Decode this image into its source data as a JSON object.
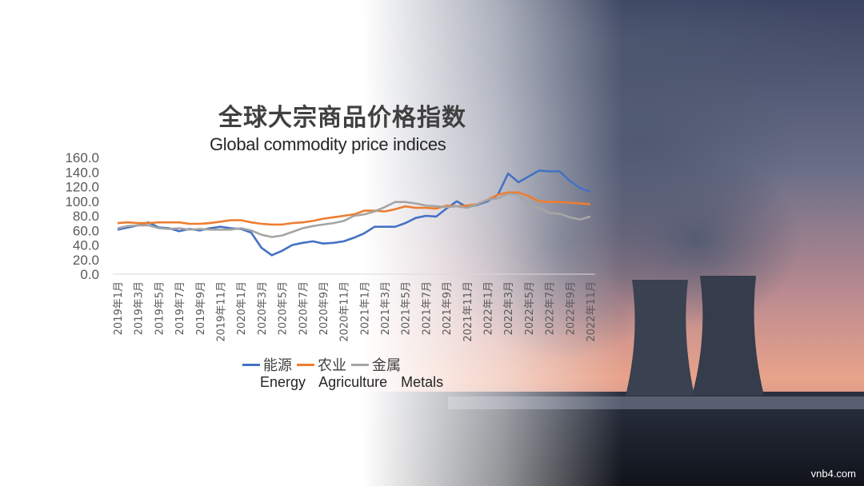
{
  "chart_data": {
    "type": "line",
    "title": "全球大宗商品价格指数",
    "subtitle": "Global commodity price indices",
    "ylim": [
      0,
      160
    ],
    "yticks": [
      "160.0",
      "140.0",
      "120.0",
      "100.0",
      "80.0",
      "60.0",
      "40.0",
      "20.0",
      "0.0"
    ],
    "x": [
      "2019年1月",
      "2019年2月",
      "2019年3月",
      "2019年4月",
      "2019年5月",
      "2019年6月",
      "2019年7月",
      "2019年8月",
      "2019年9月",
      "2019年10月",
      "2019年11月",
      "2019年12月",
      "2020年1月",
      "2020年2月",
      "2020年3月",
      "2020年4月",
      "2020年5月",
      "2020年6月",
      "2020年7月",
      "2020年8月",
      "2020年9月",
      "2020年10月",
      "2020年11月",
      "2020年12月",
      "2021年1月",
      "2021年2月",
      "2021年3月",
      "2021年4月",
      "2021年5月",
      "2021年6月",
      "2021年7月",
      "2021年8月",
      "2021年9月",
      "2021年10月",
      "2021年11月",
      "2021年12月",
      "2022年1月",
      "2022年2月",
      "2022年3月",
      "2022年4月",
      "2022年5月",
      "2022年6月",
      "2022年7月",
      "2022年8月",
      "2022年9月",
      "2022年10月",
      "2022年11月"
    ],
    "xtick_labels": [
      "2019年1月",
      "2019年3月",
      "2019年5月",
      "2019年7月",
      "2019年9月",
      "2019年11月",
      "2020年1月",
      "2020年3月",
      "2020年5月",
      "2020年7月",
      "2020年9月",
      "2020年11月",
      "2021年1月",
      "2021年3月",
      "2021年5月",
      "2021年7月",
      "2021年9月",
      "2021年11月",
      "2022年1月",
      "2022年3月",
      "2022年5月",
      "2022年7月",
      "2022年9月",
      "2022年11月"
    ],
    "series": [
      {
        "name": "能源",
        "name_en": "Energy",
        "color": "#4472C4",
        "values": [
          61,
          64,
          67,
          71,
          64,
          63,
          59,
          62,
          60,
          63,
          65,
          63,
          62,
          57,
          36,
          26,
          32,
          40,
          43,
          45,
          42,
          43,
          45,
          50,
          56,
          65,
          65,
          65,
          70,
          77,
          80,
          79,
          90,
          100,
          92,
          95,
          100,
          109,
          138,
          126,
          134,
          142,
          141,
          141,
          128,
          118,
          113
        ]
      },
      {
        "name": "农业",
        "name_en": "Agriculture",
        "color": "#ED7D31",
        "values": [
          70,
          71,
          70,
          70,
          71,
          71,
          71,
          69,
          69,
          70,
          72,
          74,
          74,
          71,
          69,
          68,
          68,
          70,
          71,
          73,
          76,
          78,
          80,
          82,
          87,
          87,
          86,
          89,
          93,
          91,
          91,
          90,
          94,
          93,
          94,
          96,
          102,
          109,
          112,
          112,
          107,
          100,
          99,
          99,
          98,
          97,
          96
        ]
      },
      {
        "name": "金属",
        "name_en": "Metals",
        "color": "#A5A5A5",
        "values": [
          63,
          66,
          67,
          67,
          63,
          62,
          63,
          61,
          62,
          61,
          61,
          61,
          63,
          60,
          54,
          51,
          53,
          58,
          63,
          66,
          68,
          70,
          73,
          80,
          82,
          86,
          92,
          99,
          99,
          97,
          94,
          93,
          92,
          93,
          91,
          96,
          102,
          104,
          110,
          109,
          95,
          91,
          84,
          83,
          78,
          75,
          79
        ]
      }
    ]
  },
  "legend_cn": [
    "能源",
    "农业",
    "金属"
  ],
  "legend_en": [
    "Energy",
    "Agriculture",
    "Metals"
  ],
  "watermark": "vnb4.com"
}
